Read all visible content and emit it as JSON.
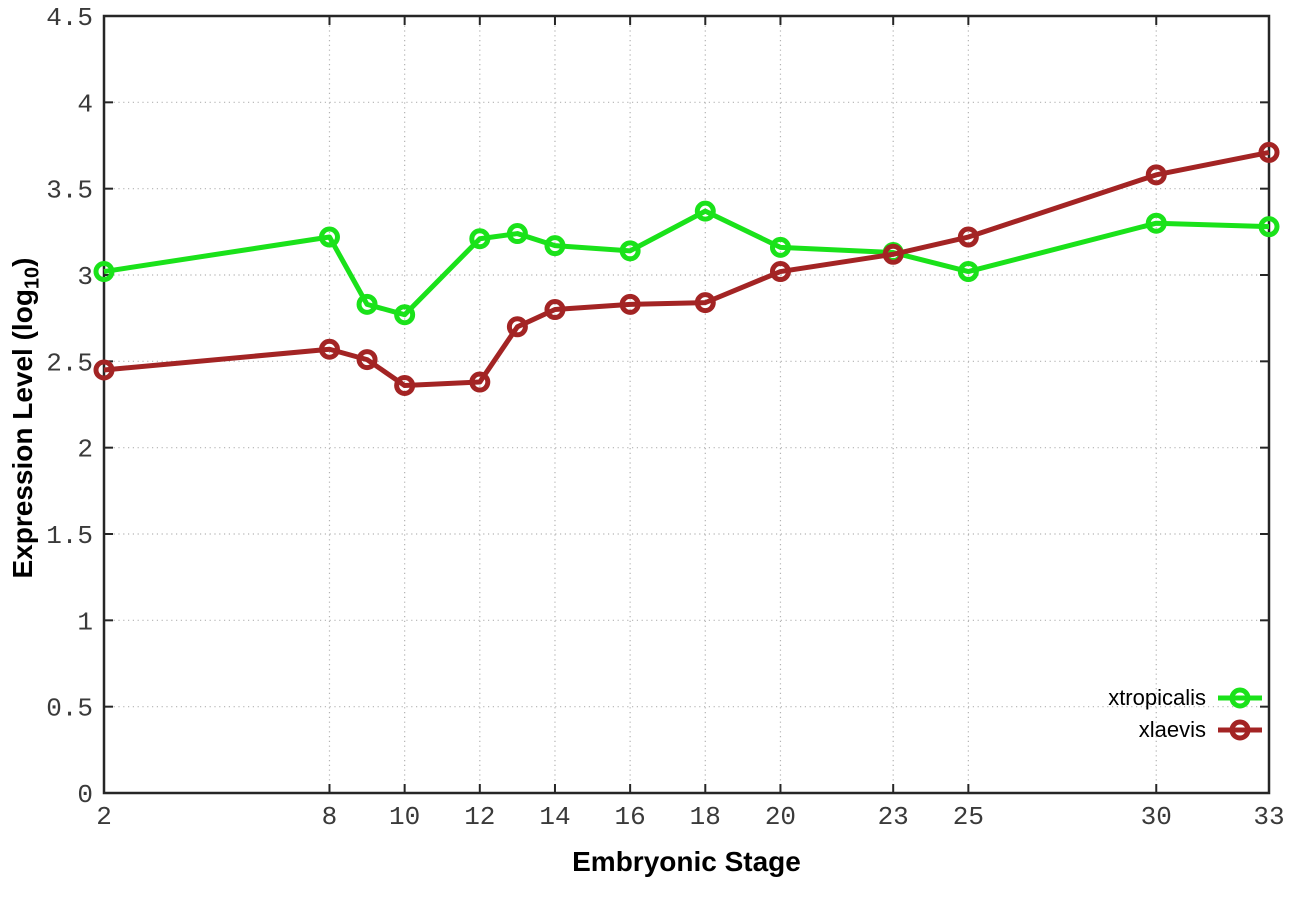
{
  "chart_data": {
    "type": "line",
    "xlabel": "Embryonic Stage",
    "ylabel": "Expression Level (log10)",
    "ylabel_parts": {
      "main": "Expression Level (log",
      "sub": "10",
      "close": ")"
    },
    "xlim": [
      2,
      33
    ],
    "ylim": [
      0,
      4.5
    ],
    "grid": true,
    "grid_style": "dotted",
    "legend_position": "bottom-right",
    "marker": "open-circle",
    "x": [
      2,
      8,
      9,
      10,
      12,
      13,
      14,
      16,
      18,
      20,
      23,
      25,
      30,
      33
    ],
    "series": [
      {
        "name": "xtropicalis",
        "color": "#1ae21a",
        "values": [
          3.02,
          3.22,
          2.83,
          2.77,
          3.21,
          3.24,
          3.17,
          3.14,
          3.37,
          3.16,
          3.13,
          3.02,
          3.3,
          3.28
        ]
      },
      {
        "name": "xlaevis",
        "color": "#a32424",
        "values": [
          2.45,
          2.57,
          2.51,
          2.36,
          2.38,
          2.7,
          2.8,
          2.83,
          2.84,
          3.02,
          3.12,
          3.22,
          3.58,
          3.71
        ]
      }
    ],
    "x_ticks": {
      "values": [
        2,
        8,
        10,
        12,
        14,
        16,
        18,
        20,
        23,
        25,
        30,
        33
      ],
      "labels": [
        "2",
        "8",
        "10",
        "12",
        "14",
        "16",
        "18",
        "20",
        "23",
        "25",
        "30",
        "33"
      ]
    },
    "y_ticks": {
      "values": [
        0,
        0.5,
        1,
        1.5,
        2,
        2.5,
        3,
        3.5,
        4,
        4.5
      ],
      "labels": [
        "0",
        "0.5",
        "1",
        "1.5",
        "2",
        "2.5",
        "3",
        "3.5",
        "4",
        "4.5"
      ]
    },
    "colors": {
      "background": "#ffffff",
      "border": "#262626",
      "grid": "#b3b3b3",
      "tick_label": "#3a3a3a"
    }
  }
}
